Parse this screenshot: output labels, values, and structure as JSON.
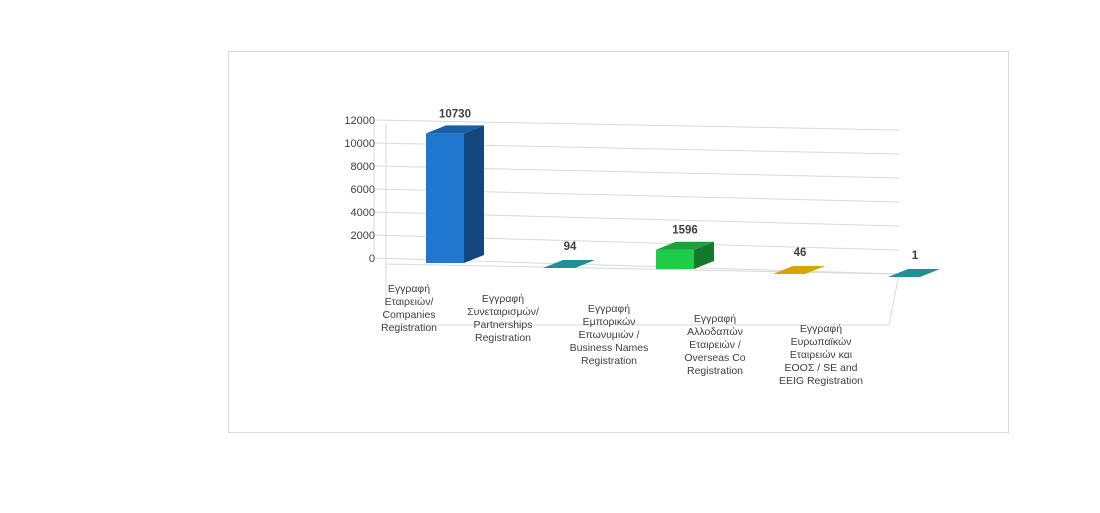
{
  "chart_data": {
    "type": "bar",
    "title": "",
    "xlabel": "",
    "ylabel": "",
    "ylim": [
      0,
      12000
    ],
    "yticks": [
      0,
      2000,
      4000,
      6000,
      8000,
      10000,
      12000
    ],
    "grid": true,
    "legend": "none",
    "categories": [
      "Εγγραφή Εταιρειών/ Companies Registration",
      "Εγγραφή Συνεταιρισμών/ Partnerships Registration",
      "Εγγραφή Εμπορικών Επωνυμιών / Business Names Registration",
      "Εγγραφή Αλλοδαπών Εταιρειών / Overseas Co Registration",
      "Εγγραφή Ευρωπαϊκών Εταιρειών και ΕΟΟΣ / SE and EEIG Registration"
    ],
    "category_lines": [
      [
        "Εγγραφή",
        "Εταιρειών/",
        "Companies",
        "Registration"
      ],
      [
        "Εγγραφή",
        "Συνεταιρισμών/",
        "Partnerships",
        "Registration"
      ],
      [
        "Εγγραφή",
        "Εμπορικών",
        "Επωνυμιών /",
        "Business Names",
        "Registration"
      ],
      [
        "Εγγραφή",
        "Αλλοδαπών",
        "Εταιρειών /",
        "Overseas Co",
        "Registration"
      ],
      [
        "Εγγραφή",
        "Ευρωπαϊκών",
        "Εταιρειών και",
        "ΕΟΟΣ / SE and",
        "EEIG Registration"
      ]
    ],
    "values": [
      10730,
      94,
      1596,
      46,
      1
    ],
    "data_labels": [
      "10730",
      "94",
      "1596",
      "46",
      "1"
    ],
    "colors": [
      "#1f77d0",
      "#1f8f99",
      "#1fcc4a",
      "#d9a400",
      "#1f8f99"
    ]
  }
}
